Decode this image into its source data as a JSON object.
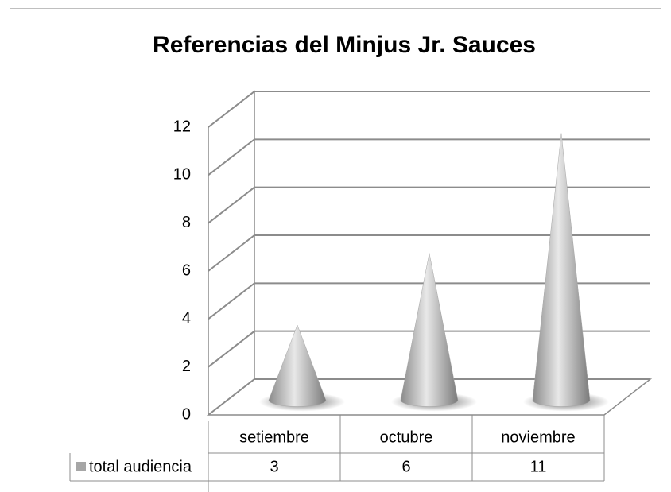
{
  "chart_data": {
    "type": "cone3d",
    "title": "Referencias del Minjus Jr. Sauces",
    "categories": [
      "setiembre",
      "octubre",
      "noviembre"
    ],
    "series": [
      {
        "name": "total audiencia",
        "color": "#a6a6a6",
        "values": [
          3,
          6,
          11
        ]
      }
    ],
    "ylim": [
      0,
      12
    ],
    "yticks": [
      0,
      2,
      4,
      6,
      8,
      10,
      12
    ],
    "grid": true,
    "legend": "table"
  }
}
